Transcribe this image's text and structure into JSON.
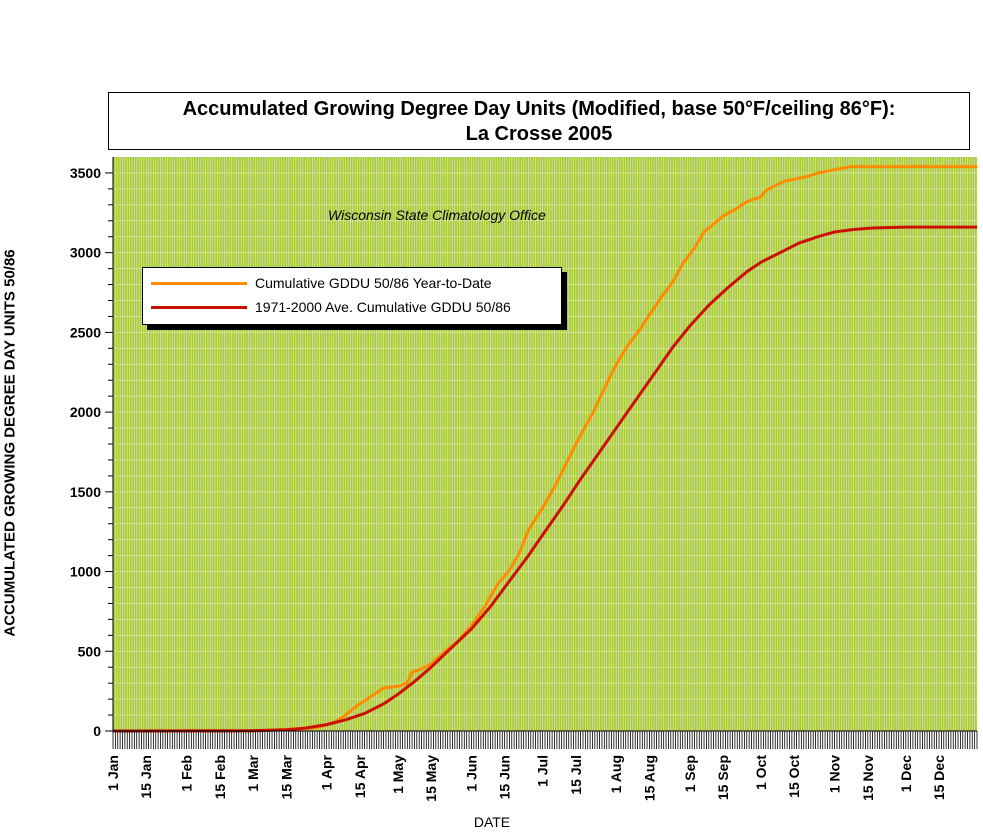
{
  "chart_data": {
    "type": "line",
    "title": "Accumulated Growing Degree Day Units (Modified, base 50°F/ceiling 86°F):",
    "subtitle": "La Crosse 2005",
    "annotation": "Wisconsin State Climatology Office",
    "xlabel": "DATE",
    "ylabel": "ACCUMULATED GROWING DEGREE DAY UNITS 50/86",
    "xlim": [
      1,
      365
    ],
    "ylim": [
      0,
      3600
    ],
    "yticks": [
      0,
      500,
      1000,
      1500,
      2000,
      2500,
      3000,
      3500
    ],
    "xtick_labels": [
      {
        "day": 1,
        "label": "1 Jan"
      },
      {
        "day": 15,
        "label": "15 Jan"
      },
      {
        "day": 32,
        "label": "1 Feb"
      },
      {
        "day": 46,
        "label": "15 Feb"
      },
      {
        "day": 60,
        "label": "1 Mar"
      },
      {
        "day": 74,
        "label": "15 Mar"
      },
      {
        "day": 91,
        "label": "1 Apr"
      },
      {
        "day": 105,
        "label": "15 Apr"
      },
      {
        "day": 121,
        "label": "1 May"
      },
      {
        "day": 135,
        "label": "15 May"
      },
      {
        "day": 152,
        "label": "1 Jun"
      },
      {
        "day": 166,
        "label": "15 Jun"
      },
      {
        "day": 182,
        "label": "1 Jul"
      },
      {
        "day": 196,
        "label": "15 Jul"
      },
      {
        "day": 213,
        "label": "1 Aug"
      },
      {
        "day": 227,
        "label": "15 Aug"
      },
      {
        "day": 244,
        "label": "1 Sep"
      },
      {
        "day": 258,
        "label": "15 Sep"
      },
      {
        "day": 274,
        "label": "1 Oct"
      },
      {
        "day": 288,
        "label": "15 Oct"
      },
      {
        "day": 305,
        "label": "1 Nov"
      },
      {
        "day": 319,
        "label": "15 Nov"
      },
      {
        "day": 335,
        "label": "1 Dec"
      },
      {
        "day": 349,
        "label": "15 Dec"
      }
    ],
    "grid": true,
    "legend_position": "upper-left",
    "background_color": "#a8c83c",
    "grid_color": "#d8e89a",
    "series": [
      {
        "name": "Cumulative GDDU 50/86 Year-to-Date",
        "color": "#ff8c00",
        "x": [
          1,
          60,
          74,
          82,
          88,
          91,
          95,
          99,
          103,
          107,
          111,
          115,
          121,
          125,
          127,
          131,
          135,
          140,
          146,
          152,
          158,
          163,
          168,
          172,
          176,
          182,
          187,
          191,
          196,
          200,
          204,
          208,
          213,
          218,
          223,
          227,
          232,
          237,
          241,
          246,
          250,
          254,
          258,
          263,
          268,
          272,
          274,
          276,
          280,
          284,
          288,
          294,
          298,
          305,
          312,
          318,
          365
        ],
        "y": [
          0,
          0,
          10,
          15,
          25,
          40,
          60,
          100,
          150,
          190,
          230,
          270,
          280,
          300,
          370,
          390,
          420,
          490,
          560,
          660,
          790,
          920,
          1010,
          1110,
          1260,
          1400,
          1530,
          1650,
          1800,
          1910,
          2020,
          2150,
          2300,
          2420,
          2520,
          2610,
          2720,
          2820,
          2930,
          3030,
          3130,
          3180,
          3230,
          3270,
          3320,
          3340,
          3350,
          3390,
          3420,
          3450,
          3460,
          3480,
          3500,
          3520,
          3540,
          3540,
          3540
        ]
      },
      {
        "name": "1971-2000 Ave. Cumulative GDDU 50/86",
        "color": "#cc1100",
        "x": [
          1,
          60,
          74,
          82,
          91,
          99,
          107,
          115,
          121,
          128,
          135,
          142,
          152,
          160,
          168,
          176,
          182,
          190,
          198,
          206,
          213,
          221,
          229,
          237,
          244,
          252,
          260,
          268,
          274,
          282,
          290,
          298,
          305,
          313,
          321,
          335,
          365
        ],
        "y": [
          0,
          2,
          8,
          18,
          40,
          70,
          110,
          170,
          230,
          310,
          400,
          500,
          640,
          780,
          940,
          1100,
          1230,
          1400,
          1580,
          1750,
          1900,
          2070,
          2240,
          2410,
          2540,
          2670,
          2780,
          2880,
          2940,
          3000,
          3060,
          3100,
          3130,
          3145,
          3155,
          3160,
          3160
        ]
      }
    ]
  }
}
